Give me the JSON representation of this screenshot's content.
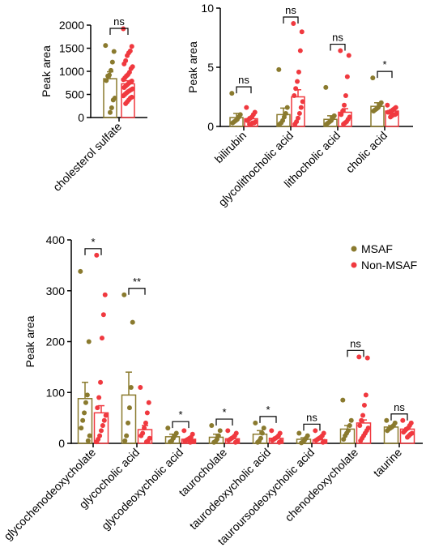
{
  "colors": {
    "msaf": "#8a7a2e",
    "non_msaf": "#f0393f"
  },
  "chart_data": [
    {
      "id": "p1",
      "type": "bar",
      "ylabel": "Peak area",
      "ylim": [
        0,
        2000
      ],
      "yticks": [
        0,
        500,
        1000,
        1500,
        2000
      ],
      "categories": [
        "cholesterol sulfate"
      ],
      "series": [
        {
          "group": "msaf",
          "values": [
            840
          ],
          "err": [
            150
          ]
        },
        {
          "group": "non_msaf",
          "values": [
            730
          ],
          "err": [
            65
          ]
        }
      ],
      "points": [
        [
          [
            1560,
            1430,
            1200,
            1020,
            920,
            900,
            800,
            420,
            380,
            210,
            110
          ]
        ],
        [
          [
            1920,
            1540,
            1440,
            1400,
            1340,
            1230,
            1160,
            1100,
            1060,
            980,
            930,
            900,
            860,
            820,
            790,
            770,
            740,
            710,
            680,
            650,
            620,
            600,
            580,
            560,
            530,
            500,
            470,
            440,
            420,
            380,
            340,
            300
          ]
        ]
      ],
      "significance": [
        "ns"
      ]
    },
    {
      "id": "p2",
      "type": "bar",
      "ylabel": "Peak area",
      "ylim": [
        0,
        10
      ],
      "yticks": [
        0,
        5,
        10
      ],
      "categories": [
        "bilirubin",
        "glycolithocholic acid",
        "lithocholic acid",
        "cholic acid"
      ],
      "series": [
        {
          "group": "msaf",
          "values": [
            0.75,
            1.0,
            0.6,
            1.7
          ],
          "err": [
            0.35,
            0.55,
            0.3,
            0.3
          ]
        },
        {
          "group": "non_msaf",
          "values": [
            0.65,
            2.5,
            1.2,
            1.3
          ],
          "err": [
            0.15,
            0.6,
            0.3,
            0.1
          ]
        }
      ],
      "points": [
        [
          [
            2.8,
            1.0,
            0.8,
            0.6,
            0.5,
            0.4,
            0.3
          ],
          [
            4.8,
            1.6,
            1.1,
            0.8,
            0.5,
            0.3,
            0.2
          ],
          [
            3.3,
            0.9,
            0.7,
            0.5,
            0.4,
            0.3,
            0.2
          ],
          [
            4.1,
            2.0,
            1.8,
            1.6,
            1.5,
            1.4,
            1.3
          ]
        ],
        [
          [
            1.6,
            1.2,
            1.0,
            0.8,
            0.7,
            0.6,
            0.5,
            0.4,
            0.3,
            0.3,
            0.2,
            0.2
          ],
          [
            8.7,
            8.0,
            6.4,
            4.6,
            3.8,
            3.2,
            2.6,
            2.1,
            1.6,
            1.1,
            0.7,
            0.4,
            0.2
          ],
          [
            6.4,
            6.0,
            4.2,
            2.6,
            1.8,
            1.3,
            1.0,
            0.8,
            0.6,
            0.4,
            0.3,
            0.2
          ],
          [
            1.8,
            1.6,
            1.5,
            1.4,
            1.3,
            1.2,
            1.2,
            1.1,
            1.0,
            1.0,
            0.9,
            0.8
          ]
        ]
      ],
      "significance": [
        "ns",
        "ns",
        "ns",
        "*"
      ]
    },
    {
      "id": "p3",
      "type": "bar",
      "ylabel": "Peak area",
      "ylim": [
        0,
        400
      ],
      "yticks": [
        0,
        100,
        200,
        300,
        400
      ],
      "categories": [
        "glycochenodeoxycholate",
        "glycocholic acid",
        "glycodeoxycholic acid",
        "taurocholate",
        "taurodeoxycholic acid",
        "tauroursodeoxycholic acid",
        "chenodeoxycholate",
        "taurine"
      ],
      "series": [
        {
          "group": "msaf",
          "values": [
            88,
            95,
            13,
            12,
            18,
            8,
            28,
            32
          ],
          "err": [
            32,
            45,
            5,
            6,
            7,
            3,
            7,
            3
          ]
        },
        {
          "group": "non_msaf",
          "values": [
            60,
            27,
            8,
            9,
            10,
            7,
            40,
            28
          ],
          "err": [
            14,
            8,
            2,
            2,
            2,
            1.5,
            6,
            2
          ]
        }
      ],
      "points": [
        [
          [
            338,
            200,
            95,
            80,
            60,
            45,
            30,
            15,
            5
          ],
          [
            292,
            238,
            110,
            70,
            40,
            15,
            5
          ],
          [
            30,
            20,
            15,
            10,
            5,
            3
          ],
          [
            35,
            25,
            15,
            8,
            4,
            2
          ],
          [
            40,
            30,
            20,
            10,
            5,
            2
          ],
          [
            20,
            15,
            10,
            6,
            3,
            1
          ],
          [
            85,
            45,
            35,
            25,
            20,
            15,
            8
          ],
          [
            45,
            40,
            35,
            32,
            30,
            28,
            25
          ]
        ],
        [
          [
            370,
            292,
            253,
            207,
            120,
            90,
            70,
            55,
            45,
            35,
            25,
            15,
            8,
            3
          ],
          [
            110,
            80,
            60,
            40,
            30,
            20,
            15,
            10,
            5,
            3
          ],
          [
            25,
            18,
            12,
            10,
            8,
            6,
            5,
            4,
            3,
            2
          ],
          [
            25,
            20,
            15,
            12,
            10,
            8,
            6,
            4,
            2
          ],
          [
            25,
            20,
            15,
            12,
            10,
            8,
            6,
            4,
            2
          ],
          [
            25,
            20,
            15,
            12,
            10,
            8,
            6,
            4,
            2
          ],
          [
            170,
            168,
            95,
            75,
            55,
            45,
            35,
            30,
            25,
            20,
            15,
            10,
            5
          ],
          [
            45,
            40,
            35,
            30,
            28,
            25,
            22,
            20,
            18,
            15,
            12
          ]
        ]
      ],
      "significance": [
        "*",
        "**",
        "*",
        "*",
        "*",
        "ns",
        "ns",
        "ns"
      ]
    }
  ],
  "legend": [
    {
      "group": "msaf",
      "label": "MSAF"
    },
    {
      "group": "non_msaf",
      "label": "Non-MSAF"
    }
  ]
}
